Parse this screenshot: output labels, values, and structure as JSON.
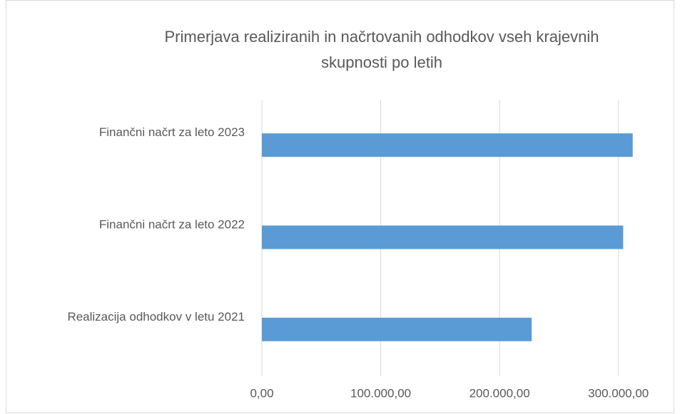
{
  "chart_data": {
    "type": "hbar",
    "title": "Primerjava realiziranih in načrtovanih odhodkov vseh krajevnih skupnosti po letih",
    "categories": [
      "Realizacija odhodkov v letu 2021",
      "Finančni načrt za leto 2022",
      "Finančni načrt za leto 2023"
    ],
    "values": [
      227000,
      304000,
      312000
    ],
    "color": "#5b9bd5",
    "xlim": [
      0,
      350000
    ],
    "xticks": [
      {
        "value": 0,
        "label": "0,00"
      },
      {
        "value": 100000,
        "label": "100.000,00"
      },
      {
        "value": 200000,
        "label": "200.000,00"
      },
      {
        "value": 300000,
        "label": "300.000,00"
      }
    ],
    "grid": true
  }
}
